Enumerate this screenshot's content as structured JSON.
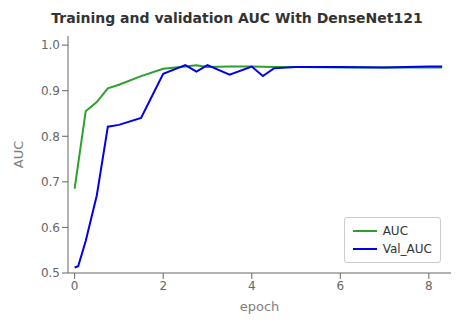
{
  "chart_data": {
    "type": "line",
    "title": "Training and validation AUC With DenseNet121",
    "xlabel": "epoch",
    "ylabel": "AUC",
    "xlim": [
      -0.15,
      8.5
    ],
    "ylim": [
      0.5,
      1.02
    ],
    "xticks": [
      0,
      2,
      4,
      6,
      8
    ],
    "yticks": [
      {
        "value": 0.5,
        "label": "0.5"
      },
      {
        "value": 0.6,
        "label": "0.6"
      },
      {
        "value": 0.7,
        "label": "0.7"
      },
      {
        "value": 0.8,
        "label": "0.8"
      },
      {
        "value": 0.9,
        "label": "0.9"
      },
      {
        "value": 1.0,
        "label": "1.0"
      }
    ],
    "grid": false,
    "legend": "lower right",
    "series": [
      {
        "name": "AUC",
        "color": "#2ca02c",
        "x": [
          0,
          0.25,
          0.5,
          0.75,
          1.0,
          1.5,
          2.0,
          2.5,
          2.75,
          3.0,
          3.5,
          4.0,
          4.5,
          5.0,
          6.0,
          7.0,
          8.0,
          8.3
        ],
        "values": [
          0.685,
          0.855,
          0.875,
          0.905,
          0.913,
          0.932,
          0.948,
          0.953,
          0.956,
          0.952,
          0.953,
          0.953,
          0.952,
          0.952,
          0.951,
          0.951,
          0.951,
          0.951
        ]
      },
      {
        "name": "Val_AUC",
        "color": "#0000ee",
        "x": [
          0,
          0.08,
          0.25,
          0.5,
          0.75,
          1.0,
          1.5,
          2.0,
          2.5,
          2.75,
          3.0,
          3.5,
          4.0,
          4.25,
          4.5,
          5.0,
          6.0,
          7.0,
          8.0,
          8.3
        ],
        "values": [
          0.512,
          0.515,
          0.57,
          0.67,
          0.821,
          0.825,
          0.84,
          0.937,
          0.956,
          0.942,
          0.956,
          0.935,
          0.953,
          0.932,
          0.949,
          0.952,
          0.952,
          0.951,
          0.953,
          0.953
        ]
      }
    ]
  }
}
